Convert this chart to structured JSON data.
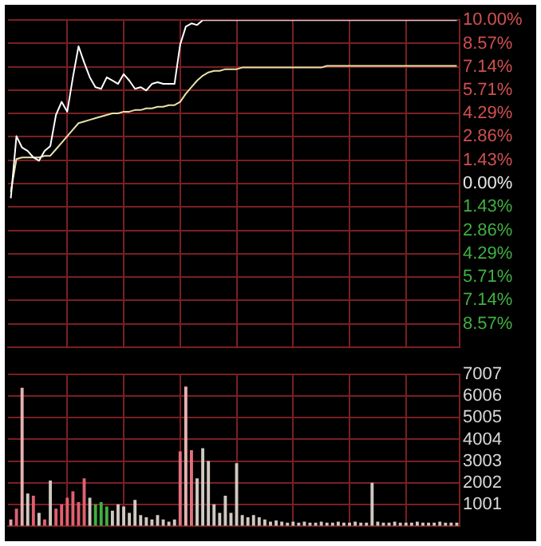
{
  "chart_data": [
    {
      "type": "line",
      "categories": [
        null,
        null,
        null,
        null,
        null,
        null,
        null,
        null,
        null,
        null,
        null,
        null,
        null,
        null,
        null,
        null,
        null,
        null,
        null,
        null,
        null,
        null,
        null,
        null,
        null,
        null,
        null,
        null,
        null,
        null,
        null,
        null,
        null,
        null,
        null,
        null,
        null,
        null,
        null,
        null,
        null,
        null,
        null,
        null,
        null,
        null,
        null,
        null,
        null,
        null,
        null,
        null,
        null,
        null,
        null,
        null,
        null,
        null,
        null,
        null,
        null,
        null,
        null,
        null,
        null,
        null,
        null,
        null,
        null,
        null,
        null,
        null,
        null,
        null,
        null,
        null,
        null,
        null,
        null,
        null
      ],
      "series": [
        {
          "color": "#ffffff",
          "values": [
            -0.9,
            2.9,
            2.2,
            2.0,
            1.6,
            1.4,
            2.0,
            2.3,
            4.2,
            5.0,
            4.4,
            6.5,
            8.4,
            7.4,
            6.5,
            5.9,
            5.8,
            6.5,
            6.3,
            6.1,
            6.7,
            6.3,
            5.8,
            5.9,
            5.7,
            6.1,
            6.2,
            6.1,
            6.1,
            6.1,
            8.5,
            9.6,
            9.8,
            9.7,
            10,
            10,
            10,
            10,
            10,
            10,
            10,
            10,
            10,
            10,
            10,
            10,
            10,
            10,
            10,
            10,
            10,
            10,
            10,
            10,
            10,
            10,
            10,
            10,
            10,
            10,
            10,
            10,
            10,
            10,
            10,
            10,
            10,
            10,
            10,
            10,
            10,
            10,
            10,
            10,
            10,
            10,
            10,
            10,
            10,
            10
          ]
        },
        {
          "color": "#e8e2a8",
          "values": [
            -0.5,
            1.5,
            1.6,
            1.6,
            1.6,
            1.6,
            1.7,
            1.7,
            2.1,
            2.5,
            2.9,
            3.3,
            3.7,
            3.8,
            3.9,
            4.0,
            4.1,
            4.2,
            4.3,
            4.3,
            4.4,
            4.4,
            4.5,
            4.5,
            4.6,
            4.6,
            4.7,
            4.7,
            4.8,
            4.8,
            5.0,
            5.5,
            5.9,
            6.3,
            6.6,
            6.8,
            6.9,
            6.9,
            7.0,
            7.0,
            7.0,
            7.1,
            7.1,
            7.1,
            7.1,
            7.1,
            7.1,
            7.1,
            7.1,
            7.1,
            7.1,
            7.1,
            7.1,
            7.1,
            7.1,
            7.1,
            7.2,
            7.2,
            7.2,
            7.2,
            7.2,
            7.2,
            7.2,
            7.2,
            7.2,
            7.2,
            7.2,
            7.2,
            7.2,
            7.2,
            7.2,
            7.2,
            7.2,
            7.2,
            7.2,
            7.2,
            7.2,
            7.2,
            7.2,
            7.2
          ]
        }
      ],
      "ylim": [
        -10,
        10
      ],
      "yticks": [
        {
          "value": 10,
          "label": "10.00%"
        },
        {
          "value": 8.57,
          "label": "8.57%"
        },
        {
          "value": 7.14,
          "label": "7.14%"
        },
        {
          "value": 5.71,
          "label": "5.71%"
        },
        {
          "value": 4.29,
          "label": "4.29%"
        },
        {
          "value": 2.86,
          "label": "2.86%"
        },
        {
          "value": 1.43,
          "label": "1.43%"
        },
        {
          "value": 0,
          "label": "0.00%"
        },
        {
          "value": -1.43,
          "label": "1.43%"
        },
        {
          "value": -2.86,
          "label": "2.86%"
        },
        {
          "value": -4.29,
          "label": "4.29%"
        },
        {
          "value": -5.71,
          "label": "5.71%"
        },
        {
          "value": -7.14,
          "label": "7.14%"
        },
        {
          "value": -8.57,
          "label": "8.57%"
        }
      ],
      "grid": true,
      "legend": false,
      "tick_labels": "y",
      "marker": "none",
      "line_style": "solid"
    },
    {
      "type": "bar",
      "categories": [
        null,
        null,
        null,
        null,
        null,
        null,
        null,
        null,
        null,
        null,
        null,
        null,
        null,
        null,
        null,
        null,
        null,
        null,
        null,
        null,
        null,
        null,
        null,
        null,
        null,
        null,
        null,
        null,
        null,
        null,
        null,
        null,
        null,
        null,
        null,
        null,
        null,
        null,
        null,
        null,
        null,
        null,
        null,
        null,
        null,
        null,
        null,
        null,
        null,
        null,
        null,
        null,
        null,
        null,
        null,
        null,
        null,
        null,
        null,
        null,
        null,
        null,
        null,
        null,
        null,
        null,
        null,
        null,
        null,
        null,
        null,
        null,
        null,
        null,
        null,
        null,
        null,
        null,
        null,
        null
      ],
      "values": [
        300,
        800,
        6400,
        1500,
        1400,
        600,
        300,
        2100,
        800,
        1000,
        1300,
        1600,
        1100,
        2200,
        1300,
        1000,
        1100,
        900,
        700,
        1000,
        900,
        600,
        1200,
        500,
        400,
        300,
        500,
        300,
        200,
        300,
        3450,
        6450,
        3500,
        2200,
        3600,
        3000,
        1000,
        600,
        1400,
        600,
        2900,
        500,
        400,
        500,
        400,
        300,
        200,
        250,
        200,
        150,
        200,
        150,
        200,
        150,
        150,
        200,
        150,
        150,
        200,
        150,
        150,
        200,
        150,
        150,
        2000,
        200,
        150,
        150,
        200,
        150,
        150,
        150,
        200,
        150,
        150,
        150,
        200,
        150,
        150,
        150
      ],
      "colors": [
        "#e8a0a8",
        "#e06070",
        "#e8b0b0",
        "#d0c8c0",
        "#e06070",
        "#d0c8c0",
        "#e06070",
        "#d0c8c0",
        "#e06070",
        "#e06070",
        "#e06070",
        "#e06070",
        "#e06070",
        "#e06070",
        "#d0c8c0",
        "#40b040",
        "#40b040",
        "#40b040",
        "#d0c8c0",
        "#d0c8c0",
        "#d0c8c0",
        "#d0c8c0",
        "#d0c8c0",
        "#d0c8c0",
        "#d0c8c0",
        "#d0c8c0",
        "#d0c8c0",
        "#d0c8c0",
        "#d0c8c0",
        "#d0c8c0",
        "#e07080",
        "#e8b0b0",
        "#e07080",
        "#d0c8c0",
        "#d0c8c0",
        "#d0c8c0",
        "#d0c8c0",
        "#d0c8c0",
        "#d0c8c0",
        "#d0c8c0",
        "#d0c8c0",
        "#d0c8c0",
        "#d0c8c0",
        "#d0c8c0",
        "#d0c8c0",
        "#d0c8c0",
        "#d0c8c0",
        "#d0c8c0",
        "#d0c8c0",
        "#d0c8c0",
        "#d0c8c0",
        "#d0c8c0",
        "#d0c8c0",
        "#d0c8c0",
        "#d0c8c0",
        "#d0c8c0",
        "#d0c8c0",
        "#d0c8c0",
        "#d0c8c0",
        "#d0c8c0",
        "#d0c8c0",
        "#d0c8c0",
        "#d0c8c0",
        "#d0c8c0",
        "#d0c8c0",
        "#d0c8c0",
        "#d0c8c0",
        "#d0c8c0",
        "#d0c8c0",
        "#d0c8c0",
        "#d0c8c0",
        "#d0c8c0",
        "#d0c8c0",
        "#d0c8c0",
        "#d0c8c0",
        "#d0c8c0",
        "#d0c8c0",
        "#d0c8c0",
        "#d0c8c0",
        "#d0c8c0"
      ],
      "ylim": [
        0,
        7007
      ],
      "yticks": [
        1001,
        2002,
        3003,
        4004,
        5005,
        6006,
        7007
      ],
      "grid": true,
      "legend": false,
      "tick_labels": "y"
    }
  ]
}
